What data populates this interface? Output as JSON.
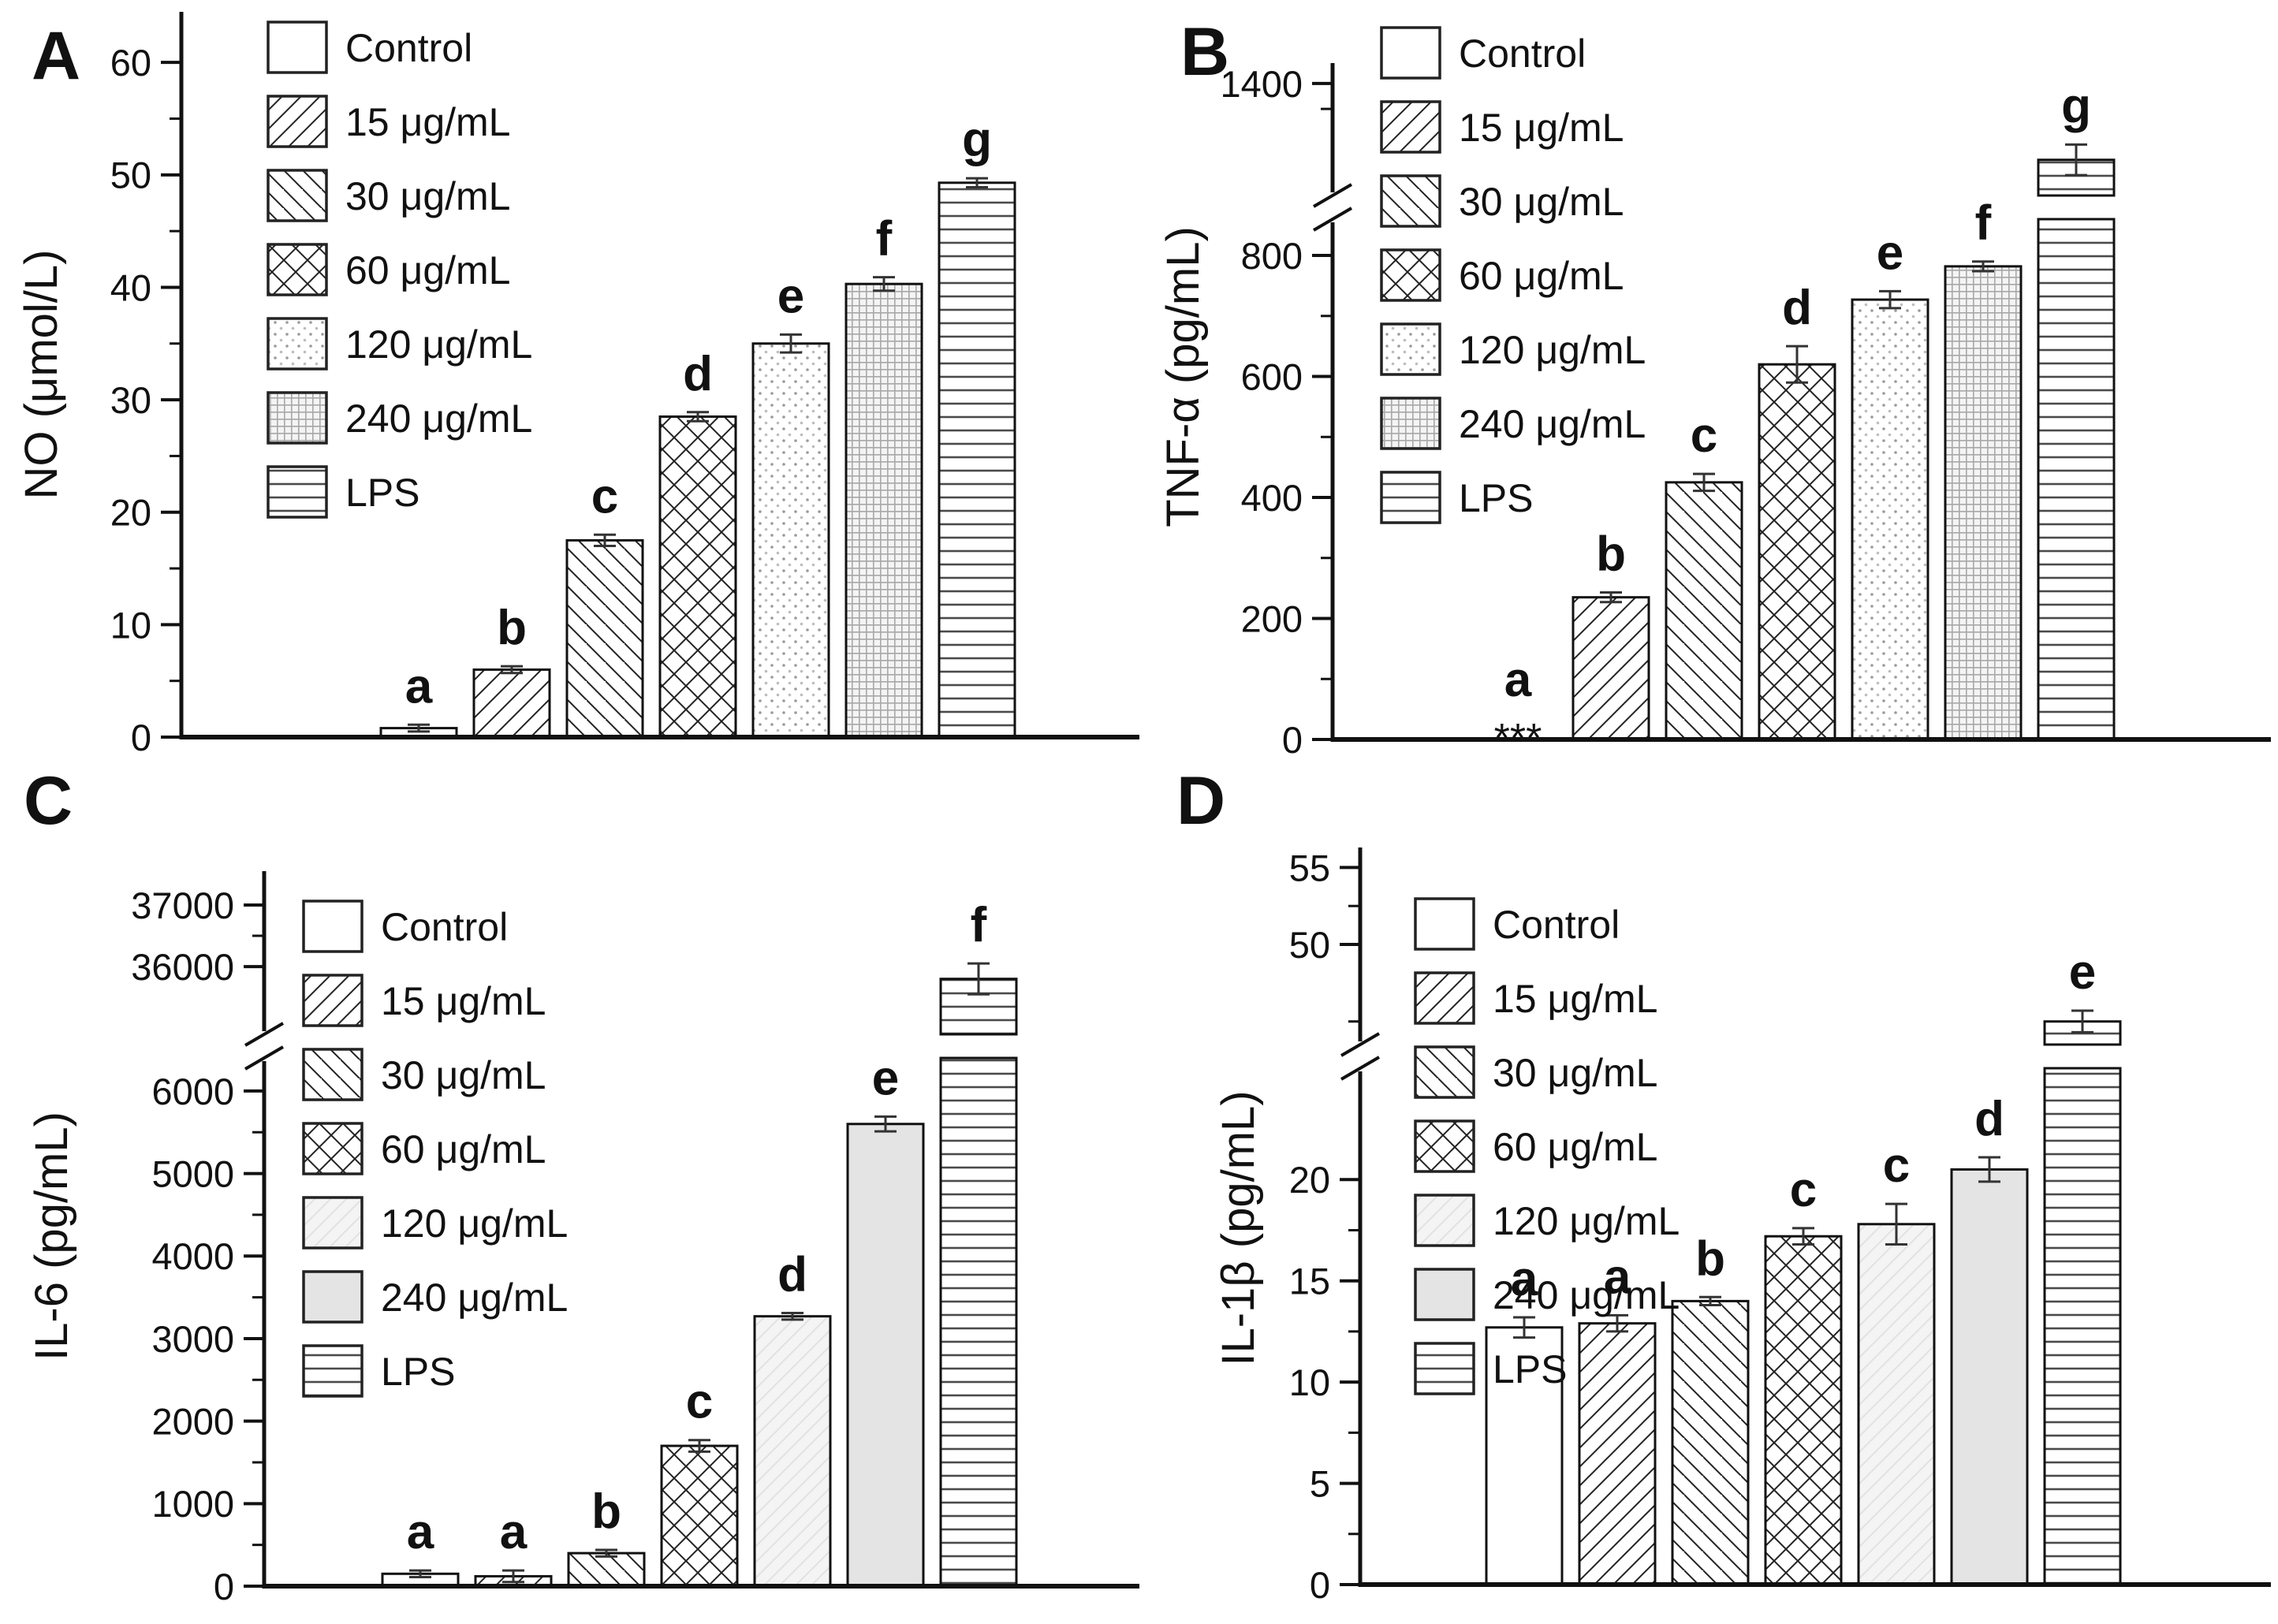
{
  "figure_title": "",
  "chart_data": [
    {
      "type": "bar",
      "panel": "A",
      "ylabel": "NO (μmol/L)",
      "categories": [
        "Control",
        "15 μg/mL",
        "30 μg/mL",
        "60 μg/mL",
        "120 μg/mL",
        "240 μg/mL",
        "LPS"
      ],
      "values": [
        0.8,
        6.0,
        17.5,
        28.5,
        35.0,
        40.3,
        49.3
      ],
      "errors": [
        0.3,
        0.3,
        0.5,
        0.4,
        0.8,
        0.6,
        0.4
      ],
      "sig_letters": [
        "a",
        "b",
        "c",
        "d",
        "e",
        "f",
        "g"
      ],
      "patterns": [
        "blank",
        "diagup",
        "diagdown",
        "cross",
        "dots",
        "grid",
        "hlines"
      ],
      "legend_position": "top-left-inside",
      "grid": false,
      "axis": {
        "break": false,
        "lower_ticks": [
          0,
          10,
          20,
          30,
          40,
          50,
          60
        ],
        "lower_minor": [
          5,
          15,
          25,
          35,
          45,
          55
        ],
        "lower_max": 64.5,
        "upper_ticks": [],
        "upper_minor": [],
        "upper_min": null,
        "upper_max": null
      }
    },
    {
      "type": "bar",
      "panel": "B",
      "ylabel": "TNF-α (pg/mL)",
      "categories": [
        "Control",
        "15 μg/mL",
        "30 μg/mL",
        "60 μg/mL",
        "120 μg/mL",
        "240 μg/mL",
        "LPS"
      ],
      "values": [
        0,
        235,
        425,
        620,
        727,
        782,
        1100
      ],
      "errors": [
        0,
        8,
        14,
        30,
        14,
        8,
        60
      ],
      "sig_letters": [
        "a",
        "b",
        "c",
        "d",
        "e",
        "f",
        "g"
      ],
      "patterns": [
        "blank",
        "diagup",
        "diagdown",
        "cross",
        "dots",
        "grid",
        "hlines"
      ],
      "control_annotation": "***",
      "legend_position": "top-left-inside",
      "grid": false,
      "axis": {
        "break": true,
        "lower_ticks": [
          0,
          200,
          400,
          600,
          800
        ],
        "lower_minor": [
          100,
          300,
          500,
          700
        ],
        "lower_max": 860,
        "upper_ticks": [
          1400
        ],
        "upper_minor": [
          1300
        ],
        "upper_min": 960,
        "upper_max": 1480
      }
    },
    {
      "type": "bar",
      "panel": "C",
      "ylabel": "IL-6 (pg/mL)",
      "categories": [
        "Control",
        "15 μg/mL",
        "30 μg/mL",
        "60 μg/mL",
        "120 μg/mL",
        "240 μg/mL",
        "LPS"
      ],
      "values": [
        150,
        120,
        400,
        1700,
        3270,
        5600,
        35800
      ],
      "errors": [
        40,
        70,
        40,
        70,
        40,
        90,
        250
      ],
      "sig_letters": [
        "a",
        "a",
        "b",
        "c",
        "d",
        "e",
        "f"
      ],
      "patterns": [
        "blank",
        "diagup",
        "diagdown",
        "cross",
        "faint",
        "solid",
        "hlines"
      ],
      "legend_position": "top-left-inside",
      "grid": false,
      "axis": {
        "break": true,
        "lower_ticks": [
          0,
          1000,
          2000,
          3000,
          4000,
          5000,
          6000
        ],
        "lower_minor": [
          500,
          1500,
          2500,
          3500,
          4500,
          5500
        ],
        "lower_max": 6400,
        "upper_ticks": [
          36000,
          37000
        ],
        "upper_minor": [
          36500
        ],
        "upper_min": 34900,
        "upper_max": 37550
      }
    },
    {
      "type": "bar",
      "panel": "D",
      "ylabel": "IL-1β (pg/mL)",
      "categories": [
        "Control",
        "15 μg/mL",
        "30 μg/mL",
        "60 μg/mL",
        "120 μg/mL",
        "240 μg/mL",
        "LPS"
      ],
      "values": [
        12.7,
        12.9,
        14.0,
        17.2,
        17.8,
        20.5,
        45.0
      ],
      "errors": [
        0.5,
        0.4,
        0.2,
        0.4,
        1.0,
        0.6,
        0.7
      ],
      "sig_letters": [
        "a",
        "a",
        "b",
        "c",
        "c",
        "d",
        "e"
      ],
      "patterns": [
        "blank",
        "diagup",
        "diagdown",
        "cross",
        "faint",
        "solid",
        "hlines"
      ],
      "legend_position": "top-left-inside",
      "grid": false,
      "axis": {
        "break": true,
        "lower_ticks": [
          0,
          5,
          10,
          15,
          20
        ],
        "lower_minor": [
          2.5,
          7.5,
          12.5,
          17.5
        ],
        "lower_max": 25.5,
        "upper_ticks": [
          50,
          55
        ],
        "upper_minor": [
          45,
          52.5
        ],
        "upper_min": 43.5,
        "upper_max": 56.3
      }
    }
  ]
}
